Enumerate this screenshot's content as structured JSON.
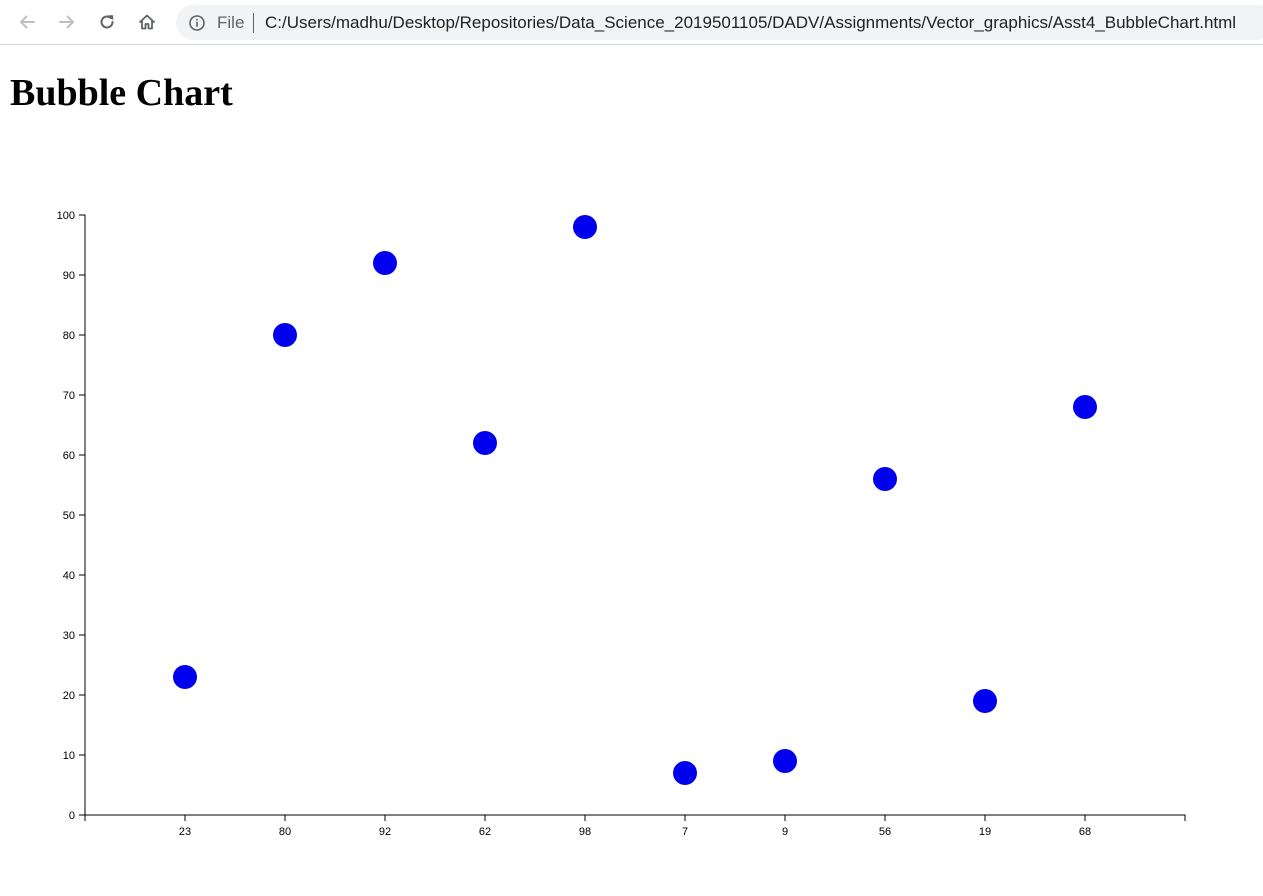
{
  "browser": {
    "back_icon": "back-arrow-icon",
    "forward_icon": "forward-arrow-icon",
    "reload_icon": "reload-icon",
    "home_icon": "home-icon",
    "site_info_icon": "info-icon",
    "scheme_label": "File",
    "url": "C:/Users/madhu/Desktop/Repositories/Data_Science_2019501105/DADV/Assignments/Vector_graphics/Asst4_BubbleChart.html"
  },
  "page": {
    "title": "Bubble Chart"
  },
  "chart_data": {
    "type": "scatter",
    "title": "",
    "xlabel": "",
    "ylabel": "",
    "categories": [
      "23",
      "80",
      "92",
      "62",
      "98",
      "7",
      "9",
      "56",
      "19",
      "68"
    ],
    "values": [
      23,
      80,
      92,
      62,
      98,
      7,
      9,
      56,
      19,
      68
    ],
    "ylim": [
      0,
      100
    ],
    "yticks": [
      0,
      10,
      20,
      30,
      40,
      50,
      60,
      70,
      80,
      90,
      100
    ],
    "grid": false,
    "legend": "none",
    "point_color": "#0000ee"
  }
}
